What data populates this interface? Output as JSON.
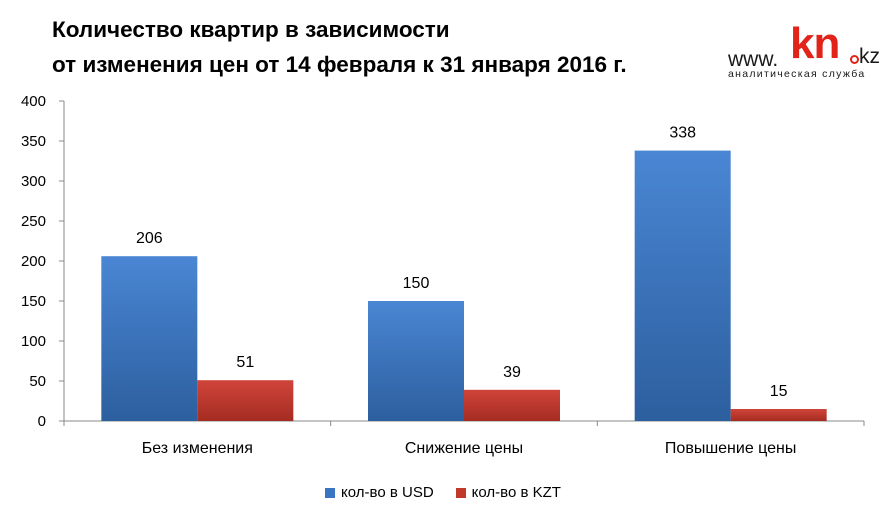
{
  "title_lines": [
    "Количество квартир в зависимости",
    "от изменения цен от 14 февраля к 31 января 2016 г."
  ],
  "logo": {
    "www": "www.",
    "kn": "kn",
    "kz": "kz",
    "subtitle": "аналитическая служба"
  },
  "colors": {
    "usd": "#3a75c4",
    "usd_light": "#4a86d4",
    "usd_dark": "#2c5f9e",
    "kzt": "#c0392b",
    "kzt_light": "#d0443a",
    "kzt_dark": "#a52c22",
    "axis": "#888888"
  },
  "chart_data": {
    "type": "bar",
    "categories": [
      "Без изменения",
      "Снижение цены",
      "Повышение цены"
    ],
    "series": [
      {
        "name": "кол-во в USD",
        "values": [
          206,
          150,
          338
        ]
      },
      {
        "name": "кол-во в KZT",
        "values": [
          51,
          39,
          15
        ]
      }
    ],
    "ylim": [
      0,
      400
    ],
    "yticks": [
      0,
      50,
      100,
      150,
      200,
      250,
      300,
      350,
      400
    ],
    "legend_position": "bottom",
    "grid": false,
    "data_labels": true
  }
}
